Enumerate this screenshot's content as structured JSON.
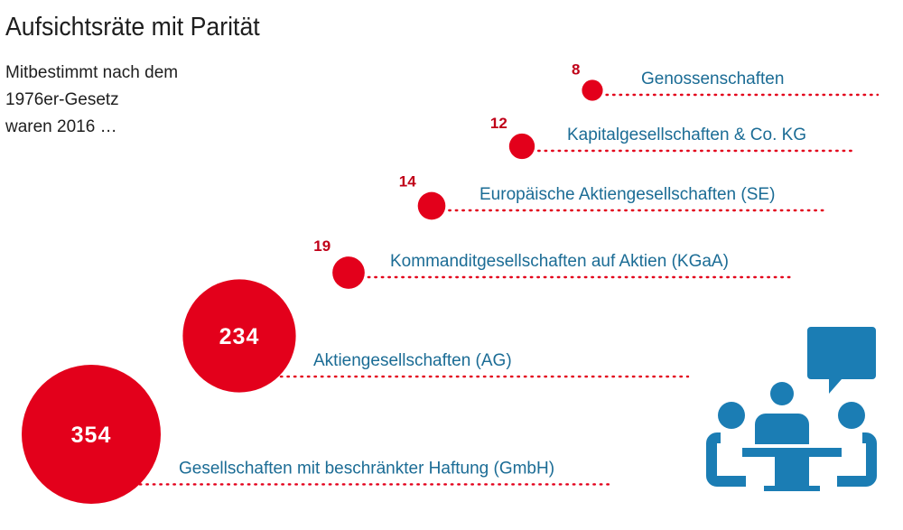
{
  "title": "Aufsichtsräte mit Parität",
  "subtitle_lines": [
    "Mitbestimmt nach dem",
    "1976er-Gesetz",
    "waren 2016 …"
  ],
  "colors": {
    "bubble": "#e3001b",
    "value_small": "#c00018",
    "label": "#1b6c95",
    "dots": "#e3001b",
    "icon": "#1b7db4",
    "title": "#1e1e1e"
  },
  "icon": "meeting-people-speech-bubble-icon",
  "chart_data": {
    "type": "bubble",
    "title": "Aufsichtsräte mit Parität",
    "categories": [
      "Genossenschaften",
      "Kapitalgesellschaften & Co. KG",
      "Europäische Aktiengesellschaften (SE)",
      "Kommanditgesellschaften auf Aktien (KGaA)",
      "Aktiengesellschaften (AG)",
      "Gesellschaften mit beschränkter Haftung (GmbH)"
    ],
    "values": [
      8,
      12,
      14,
      19,
      234,
      354
    ],
    "value_labels": [
      "8",
      "12",
      "14",
      "19",
      "234",
      "354"
    ]
  }
}
